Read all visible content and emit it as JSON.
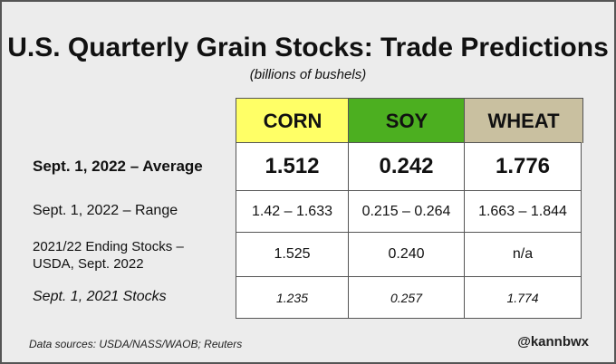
{
  "chart_data": {
    "type": "table",
    "title": "U.S. Quarterly Grain Stocks: Trade Predictions",
    "subtitle": "(billions of bushels)",
    "columns": [
      {
        "label": "CORN",
        "color": "#ffff66"
      },
      {
        "label": "SOY",
        "color": "#4caf20"
      },
      {
        "label": "WHEAT",
        "color": "#c9c0a0"
      }
    ],
    "rows": [
      {
        "label": "Sept. 1, 2022 – Average",
        "values": [
          "1.512",
          "0.242",
          "1.776"
        ]
      },
      {
        "label": "Sept. 1, 2022 – Range",
        "values": [
          "1.42 – 1.633",
          "0.215 – 0.264",
          "1.663 – 1.844"
        ]
      },
      {
        "label": "2021/22 Ending Stocks – USDA, Sept. 2022",
        "values": [
          "1.525",
          "0.240",
          "n/a"
        ]
      },
      {
        "label": "Sept. 1, 2021 Stocks",
        "values": [
          "1.235",
          "0.257",
          "1.774"
        ]
      }
    ]
  },
  "footer": {
    "source": "Data sources: USDA/NASS/WAOB; Reuters",
    "handle": "@kannbwx"
  }
}
